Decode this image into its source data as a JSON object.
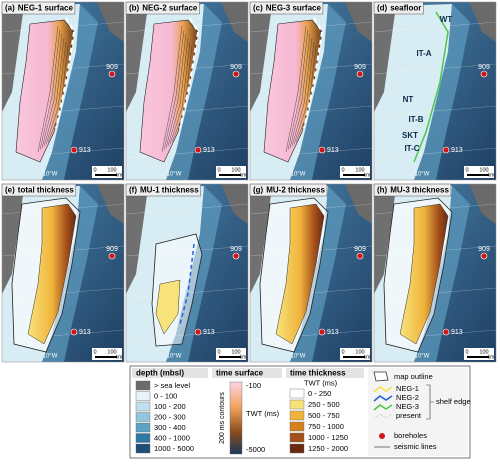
{
  "panels": [
    {
      "letter": "(a)",
      "title": "NEG-1 surface",
      "boreholes": [
        "909",
        "913"
      ],
      "scale": [
        "0",
        "100",
        "km"
      ],
      "lon": "10°W",
      "style": "surface"
    },
    {
      "letter": "(b)",
      "title": "NEG-2 surface",
      "boreholes": [
        "909",
        "913"
      ],
      "scale": [
        "0",
        "100",
        "km"
      ],
      "lon": "10°W",
      "style": "surface"
    },
    {
      "letter": "(c)",
      "title": "NEG-3 surface",
      "boreholes": [
        "909",
        "913"
      ],
      "scale": [
        "0",
        "100",
        "km"
      ],
      "lon": "10°W",
      "style": "surface"
    },
    {
      "letter": "(d)",
      "title": "seafloor",
      "boreholes": [
        "909",
        "913"
      ],
      "scale": [
        "0",
        "100",
        "km"
      ],
      "lon": "10°W",
      "style": "seafloor",
      "features": [
        "WT",
        "IT-A",
        "NT",
        "IT-B",
        "SKT",
        "IT-C"
      ]
    },
    {
      "letter": "(e)",
      "title": "total thickness",
      "boreholes": [
        "909",
        "913"
      ],
      "scale": [
        "0",
        "100",
        "km"
      ],
      "lon": "10°W",
      "style": "thick"
    },
    {
      "letter": "(f)",
      "title": "MU-1 thickness",
      "boreholes": [
        "909",
        "913"
      ],
      "scale": [
        "0",
        "100",
        "km"
      ],
      "lon": "10°W",
      "style": "thin"
    },
    {
      "letter": "(g)",
      "title": "MU-2 thickness",
      "boreholes": [
        "909",
        "913"
      ],
      "scale": [
        "0",
        "100",
        "km"
      ],
      "lon": "10°W",
      "style": "thick"
    },
    {
      "letter": "(h)",
      "title": "MU-3 thickness",
      "boreholes": [
        "909",
        "913"
      ],
      "scale": [
        "0",
        "100",
        "km"
      ],
      "lon": "10°W",
      "style": "thick"
    }
  ],
  "legend": {
    "depth": {
      "title": "depth (mbsl)",
      "items": [
        {
          "label": "> sea level",
          "color": "#6b6b6b"
        },
        {
          "label": "0 - 100",
          "color": "#e6f3f8"
        },
        {
          "label": "100 - 200",
          "color": "#bfe0ec"
        },
        {
          "label": "200 - 300",
          "color": "#8fc6dc"
        },
        {
          "label": "300 - 400",
          "color": "#5aa3c4"
        },
        {
          "label": "400 - 1000",
          "color": "#2f7aa3"
        },
        {
          "label": "1000 - 5000",
          "color": "#1d4d78"
        }
      ]
    },
    "time_surface": {
      "title": "time surface",
      "top": "-100",
      "axis": "TWT (ms)",
      "bottom": "-5000",
      "contours": "200 ms contours"
    },
    "time_thickness": {
      "title": "time thickness",
      "unit": "TWT (ms)",
      "items": [
        {
          "label": "0 - 250",
          "color": "#ffffff"
        },
        {
          "label": "250 - 500",
          "color": "#f7e37a"
        },
        {
          "label": "500 - 750",
          "color": "#f0b43c"
        },
        {
          "label": "750 - 1000",
          "color": "#d6801e"
        },
        {
          "label": "1000 - 1250",
          "color": "#a4501a"
        },
        {
          "label": "1250 - 2000",
          "color": "#6a2a12"
        }
      ]
    },
    "other": {
      "outline": "map outline",
      "lines": [
        {
          "label": "NEG-1",
          "color": "#f2e24a"
        },
        {
          "label": "NEG-2",
          "color": "#2a62d8"
        },
        {
          "label": "NEG-3",
          "color": "#4cc84c"
        },
        {
          "label": "present",
          "color": "#ffffff"
        }
      ],
      "shelf": "shelf edge",
      "boreholes": "boreholes",
      "seismic": "seismic lines"
    }
  }
}
